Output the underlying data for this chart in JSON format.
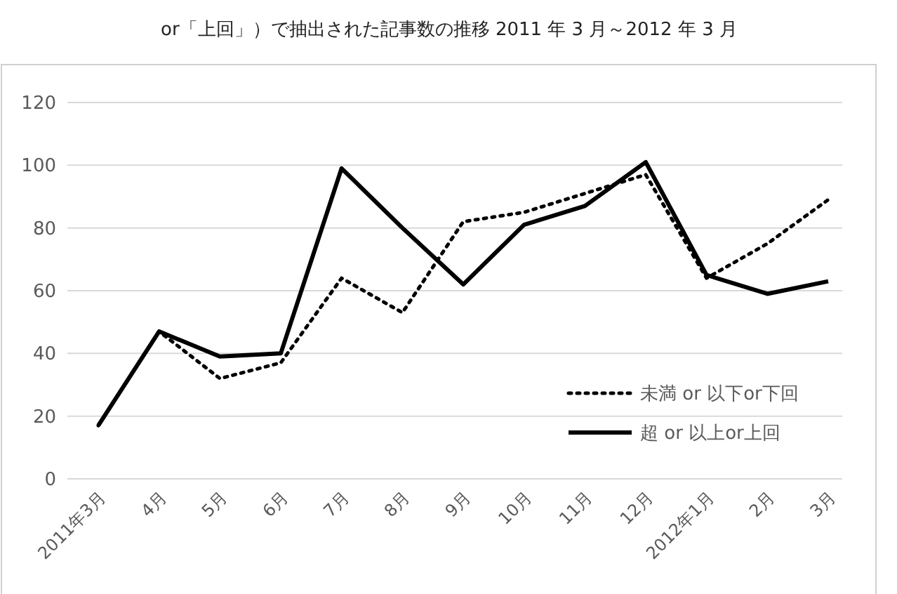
{
  "chart_data": {
    "type": "line",
    "title": "or「上回」）で抽出された記事数の推移 2011 年 3 月～2012 年 3 月",
    "categories": [
      "2011年3月",
      "4月",
      "5月",
      "6月",
      "7月",
      "8月",
      "9月",
      "10月",
      "11月",
      "12月",
      "2012年1月",
      "2月",
      "3月"
    ],
    "series": [
      {
        "name": "未満 or 以下or下回",
        "color": "#000000",
        "line_style": "dotted",
        "values": [
          17,
          47,
          32,
          37,
          64,
          53,
          82,
          85,
          91,
          97,
          64,
          75,
          89
        ]
      },
      {
        "name": "超 or 以上or上回",
        "color": "#000000",
        "line_style": "solid",
        "values": [
          17,
          47,
          39,
          40,
          99,
          80,
          62,
          81,
          87,
          101,
          65,
          59,
          63
        ]
      }
    ],
    "ylim": [
      0,
      120
    ],
    "yticks": [
      0,
      20,
      40,
      60,
      80,
      100,
      120
    ],
    "grid": "y",
    "legend": "bottom right",
    "marker": "none"
  }
}
